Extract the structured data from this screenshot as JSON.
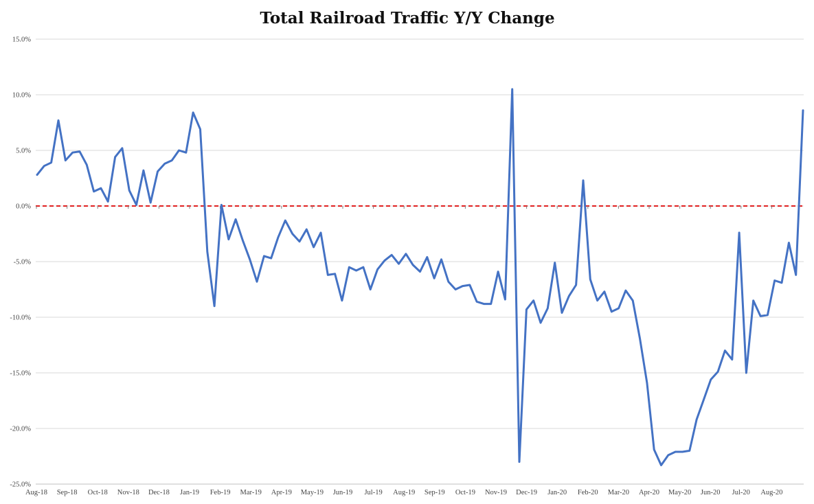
{
  "chart_data": {
    "type": "line",
    "title": "Total Railroad Traffic Y/Y Change",
    "xlabel": "",
    "ylabel": "",
    "ylim": [
      -25,
      15
    ],
    "y_ticks": [
      15,
      10,
      5,
      0,
      -5,
      -10,
      -15,
      -20,
      -25
    ],
    "y_tick_labels": [
      "15.0%",
      "10.0%",
      "5.0%",
      "0.0%",
      "-5.0%",
      "-10.0%",
      "-15.0%",
      "-20.0%",
      "-25.0%"
    ],
    "x_tick_labels": [
      "Aug-18",
      "Sep-18",
      "Oct-18",
      "Nov-18",
      "Dec-18",
      "Jan-19",
      "Feb-19",
      "Mar-19",
      "Apr-19",
      "May-19",
      "Jun-19",
      "Jul-19",
      "Aug-19",
      "Sep-19",
      "Oct-19",
      "Nov-19",
      "Dec-19",
      "Jan-20",
      "Feb-20",
      "Mar-20",
      "Apr-20",
      "May-20",
      "Jun-20",
      "Jul-20",
      "Aug-20"
    ],
    "grid": "horizontal",
    "zero_line": {
      "value": 0,
      "style": "dashed",
      "color": "#e02020"
    },
    "series": [
      {
        "color": "#4472c4",
        "values": [
          2.8,
          3.6,
          3.9,
          7.7,
          4.1,
          4.8,
          4.9,
          3.7,
          1.3,
          1.6,
          0.4,
          4.4,
          5.2,
          1.4,
          0.1,
          3.2,
          0.3,
          3.1,
          3.8,
          4.1,
          5.0,
          4.8,
          8.4,
          6.9,
          -4.1,
          -9.0,
          0.1,
          -3.0,
          -1.2,
          -3.1,
          -4.8,
          -6.8,
          -4.5,
          -4.7,
          -2.8,
          -1.3,
          -2.5,
          -3.2,
          -2.1,
          -3.7,
          -2.4,
          -6.2,
          -6.1,
          -8.5,
          -5.5,
          -5.8,
          -5.5,
          -7.5,
          -5.7,
          -4.9,
          -4.4,
          -5.2,
          -4.3,
          -5.3,
          -5.9,
          -4.6,
          -6.5,
          -4.8,
          -6.8,
          -7.5,
          -7.2,
          -7.1,
          -8.6,
          -8.8,
          -8.8,
          -5.9,
          -8.4,
          10.5,
          -23.0,
          -9.3,
          -8.5,
          -10.5,
          -9.2,
          -5.1,
          -9.6,
          -8.1,
          -7.1,
          2.3,
          -6.6,
          -8.5,
          -7.7,
          -9.5,
          -9.2,
          -7.6,
          -8.5,
          -11.9,
          -15.9,
          -21.9,
          -23.3,
          -22.4,
          -22.1,
          -22.1,
          -22.0,
          -19.2,
          -17.4,
          -15.6,
          -14.9,
          -13.0,
          -13.8,
          -2.4,
          -15.0,
          -8.5,
          -9.9,
          -9.8,
          -6.7,
          -6.9,
          -3.3,
          -6.2,
          8.6
        ]
      }
    ]
  }
}
